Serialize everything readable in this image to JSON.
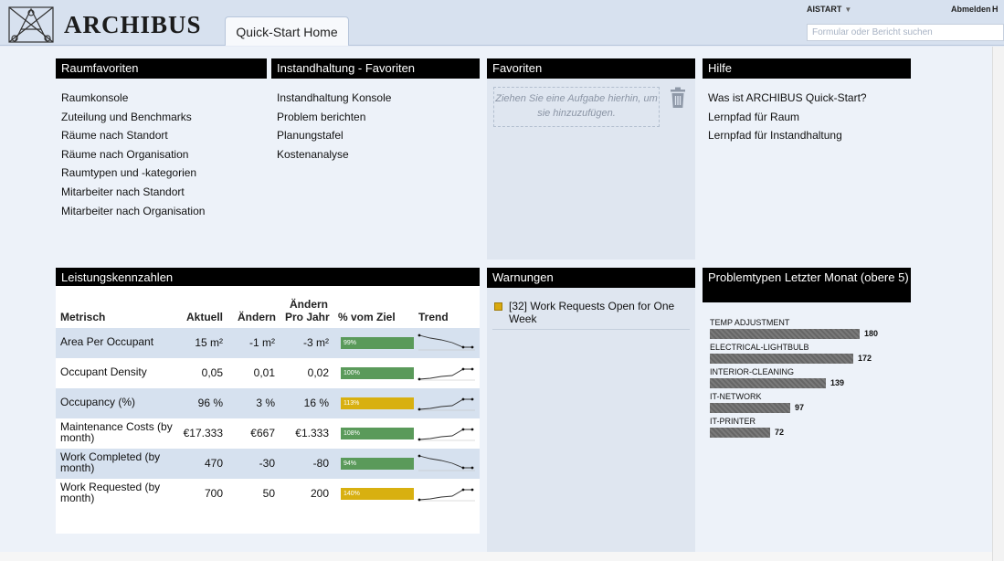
{
  "header": {
    "brand": "ARCHIBUS",
    "tab": "Quick-Start Home",
    "user": "AISTART",
    "logout": "Abmelden",
    "help_initial": "H",
    "search_placeholder": "Formular oder Bericht suchen"
  },
  "raumfavoriten": {
    "title": "Raumfavoriten",
    "items": [
      "Raumkonsole",
      "Zuteilung und Benchmarks",
      "Räume nach Standort",
      "Räume nach Organisation",
      "Raumtypen und -kategorien",
      "Mitarbeiter nach Standort",
      "Mitarbeiter nach Organisation"
    ]
  },
  "instandhaltung": {
    "title": "Instandhaltung - Favoriten",
    "items": [
      "Instandhaltung Konsole",
      "Problem berichten",
      "Planungstafel",
      "Kostenanalyse"
    ]
  },
  "favoriten": {
    "title": "Favoriten",
    "dropzone_text": "Ziehen Sie eine Aufgabe hierhin, um sie hinzuzufügen."
  },
  "hilfe": {
    "title": "Hilfe",
    "items": [
      "Was ist ARCHIBUS Quick-Start?",
      "Lernpfad für Raum",
      "Lernpfad für Instandhaltung"
    ]
  },
  "kpi": {
    "title": "Leistungskennzahlen",
    "headers": {
      "metric": "Metrisch",
      "actual": "Aktuell",
      "change": "Ändern",
      "change_year_1": "Ändern",
      "change_year_2": "Pro Jahr",
      "pct_goal": "% vom Ziel",
      "trend": "Trend"
    },
    "colors": {
      "good": "#5a9a5a",
      "warn": "#d8b010"
    },
    "rows": [
      {
        "metric": "Area Per Occupant",
        "actual": "15 m²",
        "change": "-1 m²",
        "change_year": "-3 m²",
        "pct_label": "99%",
        "pct": 99,
        "status": "good",
        "trend": "down"
      },
      {
        "metric": "Occupant Density",
        "actual": "0,05",
        "change": "0,01",
        "change_year": "0,02",
        "pct_label": "100%",
        "pct": 100,
        "status": "good",
        "trend": "up"
      },
      {
        "metric": "Occupancy (%)",
        "actual": "96 %",
        "change": "3 %",
        "change_year": "16 %",
        "pct_label": "113%",
        "pct": 113,
        "status": "warn",
        "trend": "up"
      },
      {
        "metric": "Maintenance Costs (by month)",
        "actual": "€17.333",
        "change": "€667",
        "change_year": "€1.333",
        "pct_label": "108%",
        "pct": 108,
        "status": "good",
        "trend": "up"
      },
      {
        "metric": "Work Completed (by month)",
        "actual": "470",
        "change": "-30",
        "change_year": "-80",
        "pct_label": "94%",
        "pct": 94,
        "status": "good",
        "trend": "down"
      },
      {
        "metric": "Work Requested (by month)",
        "actual": "700",
        "change": "50",
        "change_year": "200",
        "pct_label": "140%",
        "pct": 140,
        "status": "warn",
        "trend": "up"
      }
    ]
  },
  "warnungen": {
    "title": "Warnungen",
    "items": [
      "[32] Work Requests Open for One Week"
    ]
  },
  "problemtypen": {
    "title": "Problemtypen Letzter Monat (obere 5)"
  },
  "chart_data": {
    "type": "bar",
    "orientation": "horizontal",
    "title": "Problemtypen Letzter Monat (obere 5)",
    "categories": [
      "TEMP ADJUSTMENT",
      "ELECTRICAL-LIGHTBULB",
      "INTERIOR-CLEANING",
      "IT-NETWORK",
      "IT-PRINTER"
    ],
    "values": [
      180,
      172,
      139,
      97,
      72
    ],
    "value_labels": [
      "180",
      "172",
      "139",
      "97",
      "72"
    ],
    "xlim": [
      0,
      180
    ]
  }
}
